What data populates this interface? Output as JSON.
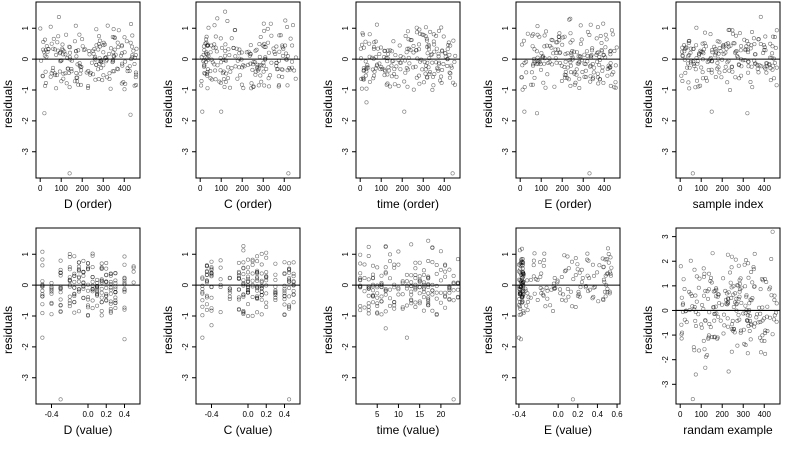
{
  "chart_data": [
    {
      "type": "scatter",
      "xlabel": "D (order)",
      "ylabel": "residuals",
      "xlim": [
        -20,
        475
      ],
      "ylim": [
        -3.85,
        1.85
      ],
      "xticks": [
        0,
        100,
        200,
        300,
        400
      ],
      "xtick_labels": [
        "0",
        "100",
        "200",
        "300",
        "400"
      ],
      "yticks": [
        -3,
        -2,
        -1,
        0,
        1
      ],
      "ytick_labels": [
        "-3",
        "-2",
        "-1",
        "0",
        "1"
      ],
      "reference_line": 0,
      "gen": {
        "n": 200,
        "kind": "index",
        "max": 460,
        "min": 0,
        "ylo": -1.0,
        "yhi": 1.55,
        "seed": 11,
        "outliers": [
          [
            140,
            -3.7
          ],
          [
            20,
            -1.75
          ],
          [
            430,
            -1.8
          ]
        ]
      }
    },
    {
      "type": "scatter",
      "xlabel": "C (order)",
      "ylabel": "residuals",
      "xlim": [
        -20,
        475
      ],
      "ylim": [
        -3.85,
        1.85
      ],
      "xticks": [
        0,
        100,
        200,
        300,
        400
      ],
      "xtick_labels": [
        "0",
        "100",
        "200",
        "300",
        "400"
      ],
      "yticks": [
        -3,
        -2,
        -1,
        0,
        1
      ],
      "ytick_labels": [
        "-3",
        "-2",
        "-1",
        "0",
        "1"
      ],
      "reference_line": 0,
      "gen": {
        "n": 200,
        "kind": "index",
        "max": 460,
        "min": 0,
        "ylo": -1.0,
        "yhi": 1.55,
        "seed": 23,
        "outliers": [
          [
            420,
            -3.7
          ],
          [
            10,
            -1.7
          ],
          [
            100,
            -1.7
          ]
        ]
      }
    },
    {
      "type": "scatter",
      "xlabel": "time (order)",
      "ylabel": "residuals",
      "xlim": [
        -20,
        475
      ],
      "ylim": [
        -3.85,
        1.85
      ],
      "xticks": [
        0,
        100,
        200,
        300,
        400
      ],
      "xtick_labels": [
        "0",
        "100",
        "200",
        "300",
        "400"
      ],
      "yticks": [
        -3,
        -2,
        -1,
        0,
        1
      ],
      "ytick_labels": [
        "-3",
        "-2",
        "-1",
        "0",
        "1"
      ],
      "reference_line": 0,
      "gen": {
        "n": 200,
        "kind": "index",
        "max": 460,
        "min": 0,
        "ylo": -1.0,
        "yhi": 1.55,
        "seed": 37,
        "outliers": [
          [
            440,
            -3.7
          ],
          [
            210,
            -1.7
          ],
          [
            30,
            -1.4
          ]
        ]
      }
    },
    {
      "type": "scatter",
      "xlabel": "E (order)",
      "ylabel": "residuals",
      "xlim": [
        -20,
        475
      ],
      "ylim": [
        -3.85,
        1.85
      ],
      "xticks": [
        0,
        100,
        200,
        300,
        400
      ],
      "xtick_labels": [
        "0",
        "100",
        "200",
        "300",
        "400"
      ],
      "yticks": [
        -3,
        -2,
        -1,
        0,
        1
      ],
      "ytick_labels": [
        "-3",
        "-2",
        "-1",
        "0",
        "1"
      ],
      "reference_line": 0,
      "gen": {
        "n": 200,
        "kind": "index",
        "max": 460,
        "min": 0,
        "ylo": -1.0,
        "yhi": 1.55,
        "seed": 41,
        "outliers": [
          [
            330,
            -3.7
          ],
          [
            80,
            -1.75
          ],
          [
            20,
            -1.7
          ]
        ]
      }
    },
    {
      "type": "scatter",
      "xlabel": "sample index",
      "ylabel": "residuals",
      "xlim": [
        -20,
        475
      ],
      "ylim": [
        -3.85,
        1.85
      ],
      "xticks": [
        0,
        100,
        200,
        300,
        400
      ],
      "xtick_labels": [
        "0",
        "100",
        "200",
        "300",
        "400"
      ],
      "yticks": [
        -3,
        -2,
        -1,
        0,
        1
      ],
      "ytick_labels": [
        "-3",
        "-2",
        "-1",
        "0",
        "1"
      ],
      "reference_line": 0,
      "gen": {
        "n": 200,
        "kind": "index",
        "max": 460,
        "min": 0,
        "ylo": -1.0,
        "yhi": 1.55,
        "seed": 53,
        "outliers": [
          [
            60,
            -3.7
          ],
          [
            320,
            -1.75
          ],
          [
            150,
            -1.7
          ]
        ]
      }
    },
    {
      "type": "scatter",
      "xlabel": "D (value)",
      "ylabel": "residuals",
      "xlim": [
        -0.57,
        0.57
      ],
      "ylim": [
        -3.85,
        1.85
      ],
      "xticks": [
        -0.4,
        0,
        0.2,
        0.4
      ],
      "xtick_labels": [
        "-0.4",
        "0.0",
        "0.2",
        "0.4"
      ],
      "yticks": [
        -3,
        -2,
        -1,
        0,
        1
      ],
      "ytick_labels": [
        "-3",
        "-2",
        "-1",
        "0",
        "1"
      ],
      "reference_line": 0,
      "gen": {
        "n": 200,
        "kind": "discrete",
        "levels": [
          -0.5,
          -0.4,
          -0.3,
          -0.2,
          -0.15,
          -0.1,
          -0.05,
          0,
          0.05,
          0.1,
          0.15,
          0.2,
          0.25,
          0.3,
          0.4,
          0.5
        ],
        "ylo": -1.0,
        "yhi": 1.5,
        "seed": 61,
        "outliers": [
          [
            -0.3,
            -3.7
          ],
          [
            0.4,
            -1.75
          ],
          [
            -0.5,
            -1.7
          ]
        ]
      }
    },
    {
      "type": "scatter",
      "xlabel": "C (value)",
      "ylabel": "residuals",
      "xlim": [
        -0.57,
        0.57
      ],
      "ylim": [
        -3.85,
        1.85
      ],
      "xticks": [
        -0.4,
        0,
        0.2,
        0.4
      ],
      "xtick_labels": [
        "-0.4",
        "0.0",
        "0.2",
        "0.4"
      ],
      "yticks": [
        -3,
        -2,
        -1,
        0,
        1
      ],
      "ytick_labels": [
        "-3",
        "-2",
        "-1",
        "0",
        "1"
      ],
      "reference_line": 0,
      "gen": {
        "n": 200,
        "kind": "discrete",
        "levels": [
          -0.5,
          -0.45,
          -0.4,
          -0.3,
          -0.2,
          -0.1,
          -0.05,
          0,
          0.05,
          0.1,
          0.15,
          0.2,
          0.3,
          0.4,
          0.45,
          0.5
        ],
        "ylo": -1.0,
        "yhi": 1.5,
        "seed": 71,
        "outliers": [
          [
            0.45,
            -3.7
          ],
          [
            -0.5,
            -1.7
          ],
          [
            -0.4,
            -1.3
          ]
        ]
      }
    },
    {
      "type": "scatter",
      "xlabel": "time (value)",
      "ylabel": "residuals",
      "xlim": [
        0,
        24.5
      ],
      "ylim": [
        -3.85,
        1.85
      ],
      "xticks": [
        5,
        10,
        15,
        20
      ],
      "xtick_labels": [
        "5",
        "10",
        "15",
        "20"
      ],
      "yticks": [
        -3,
        -2,
        -1,
        0,
        1
      ],
      "ytick_labels": [
        "-3",
        "-2",
        "-1",
        "0",
        "1"
      ],
      "reference_line": 0,
      "gen": {
        "n": 200,
        "kind": "discrete",
        "levels": [
          1,
          2,
          3,
          4,
          5,
          6,
          7,
          8,
          9,
          10,
          11,
          12,
          13,
          14,
          15,
          16,
          17,
          18,
          19,
          20,
          21,
          22,
          23,
          24
        ],
        "ylo": -1.0,
        "yhi": 1.55,
        "seed": 83,
        "outliers": [
          [
            23,
            -3.7
          ],
          [
            12,
            -1.7
          ],
          [
            7,
            -1.4
          ]
        ]
      }
    },
    {
      "type": "scatter",
      "xlabel": "E (value)",
      "ylabel": "residuals",
      "xlim": [
        -0.43,
        0.63
      ],
      "ylim": [
        -3.85,
        1.85
      ],
      "xticks": [
        -0.4,
        0,
        0.2,
        0.4,
        0.6
      ],
      "xtick_labels": [
        "-0.4",
        "0.0",
        "0.2",
        "0.4",
        "0.6"
      ],
      "yticks": [
        -3,
        -2,
        -1,
        0,
        1
      ],
      "ytick_labels": [
        "-3",
        "-2",
        "-1",
        "0",
        "1"
      ],
      "reference_line": 0,
      "gen": {
        "n": 200,
        "kind": "mix",
        "ylo": -1.0,
        "yhi": 1.55,
        "seed": 97,
        "outliers": [
          [
            0.15,
            -3.7
          ],
          [
            -0.38,
            -1.75
          ],
          [
            -0.4,
            -1.7
          ]
        ]
      }
    },
    {
      "type": "scatter",
      "xlabel": "randam example",
      "ylabel": "residuals",
      "xlim": [
        -20,
        475
      ],
      "ylim": [
        -3.8,
        3.35
      ],
      "xticks": [
        0,
        100,
        200,
        300,
        400
      ],
      "xtick_labels": [
        "0",
        "100",
        "200",
        "300",
        "400"
      ],
      "yticks": [
        -3,
        -2,
        -1,
        0,
        1,
        2,
        3
      ],
      "ytick_labels": [
        "-3",
        "-2",
        "-1",
        "0",
        "1",
        "2",
        "3"
      ],
      "reference_line": 0,
      "gen": {
        "n": 230,
        "kind": "normal",
        "max": 460,
        "min": 0,
        "sd": 1.0,
        "seed": 109,
        "outliers": [
          [
            440,
            3.2
          ],
          [
            60,
            -3.6
          ]
        ]
      }
    }
  ]
}
